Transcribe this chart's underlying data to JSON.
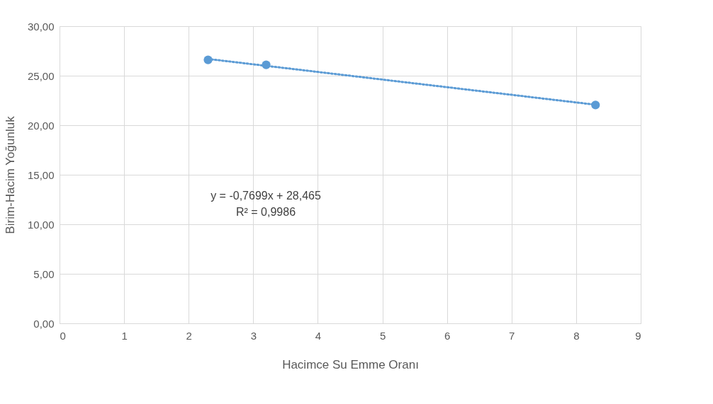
{
  "chart_data": {
    "type": "scatter",
    "xlabel": "Hacimce Su Emme Oranı",
    "ylabel": "Birim-Hacim Yoğunluk",
    "series": [
      {
        "color": "#5b9bd5",
        "marker": "circle",
        "x": [
          2.3,
          3.2,
          8.3
        ],
        "values": [
          26.6,
          26.1,
          22.05
        ]
      },
      {
        "type": "line",
        "color": "#5b9bd5",
        "line_style": "dotted",
        "x": [
          2.3,
          8.3
        ],
        "values": [
          26.69,
          22.07
        ]
      }
    ],
    "xlim": [
      0,
      9
    ],
    "xticks": [
      0,
      1,
      2,
      3,
      4,
      5,
      6,
      7,
      8,
      9
    ],
    "ylim": [
      0,
      30
    ],
    "yticks": [
      {
        "value": 0,
        "label": "0,00"
      },
      {
        "value": 5,
        "label": "5,00"
      },
      {
        "value": 10,
        "label": "10,00"
      },
      {
        "value": 15,
        "label": "15,00"
      },
      {
        "value": 20,
        "label": "20,00"
      },
      {
        "value": 25,
        "label": "25,00"
      },
      {
        "value": 30,
        "label": "30,00"
      }
    ],
    "grid": true,
    "annotations": [
      "y = -0,7699x + 28,465",
      "R² = 0,9986"
    ]
  }
}
